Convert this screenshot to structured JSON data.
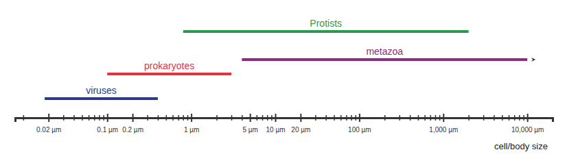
{
  "chart_data": {
    "type": "range",
    "orientation": "horizontal",
    "log": "x",
    "xlabel": "cell/body size",
    "categories": [
      "viruses",
      "prokaryotes",
      "Protists",
      "metazoa"
    ],
    "low": [
      0.018,
      0.1,
      0.8,
      4
    ],
    "high": [
      0.4,
      3,
      2000,
      10000
    ],
    "colors": [
      "#2b3a86",
      "#e1343d",
      "#2a9a4c",
      "#8e2b80"
    ],
    "xlim": [
      0.008,
      20000
    ],
    "xticks": [
      {
        "value": 0.02,
        "label": "0.02 µm"
      },
      {
        "value": 0.1,
        "label": "0.1 µm"
      },
      {
        "value": 0.2,
        "label": "0.2 µm"
      },
      {
        "value": 1,
        "label": "1 µm"
      },
      {
        "value": 5,
        "label": "5 µm"
      },
      {
        "value": 10,
        "label": "10 µm"
      },
      {
        "value": 20,
        "label": "20 µm"
      },
      {
        "value": 100,
        "label": "100 µm"
      },
      {
        "value": 1000,
        "label": "1,000 µm"
      },
      {
        "value": 10000,
        "label": "10,000 µm"
      }
    ],
    "minor_xticks": [
      0.01,
      0.03,
      0.04,
      0.05,
      0.06,
      0.07,
      0.08,
      0.09,
      0.3,
      0.4,
      0.5,
      0.6,
      0.7,
      0.8,
      0.9,
      2,
      3,
      4,
      6,
      7,
      8,
      9,
      30,
      40,
      50,
      60,
      70,
      80,
      90,
      200,
      300,
      400,
      500,
      600,
      700,
      800,
      900,
      2000,
      3000,
      4000,
      5000,
      6000,
      7000,
      8000,
      9000
    ]
  }
}
